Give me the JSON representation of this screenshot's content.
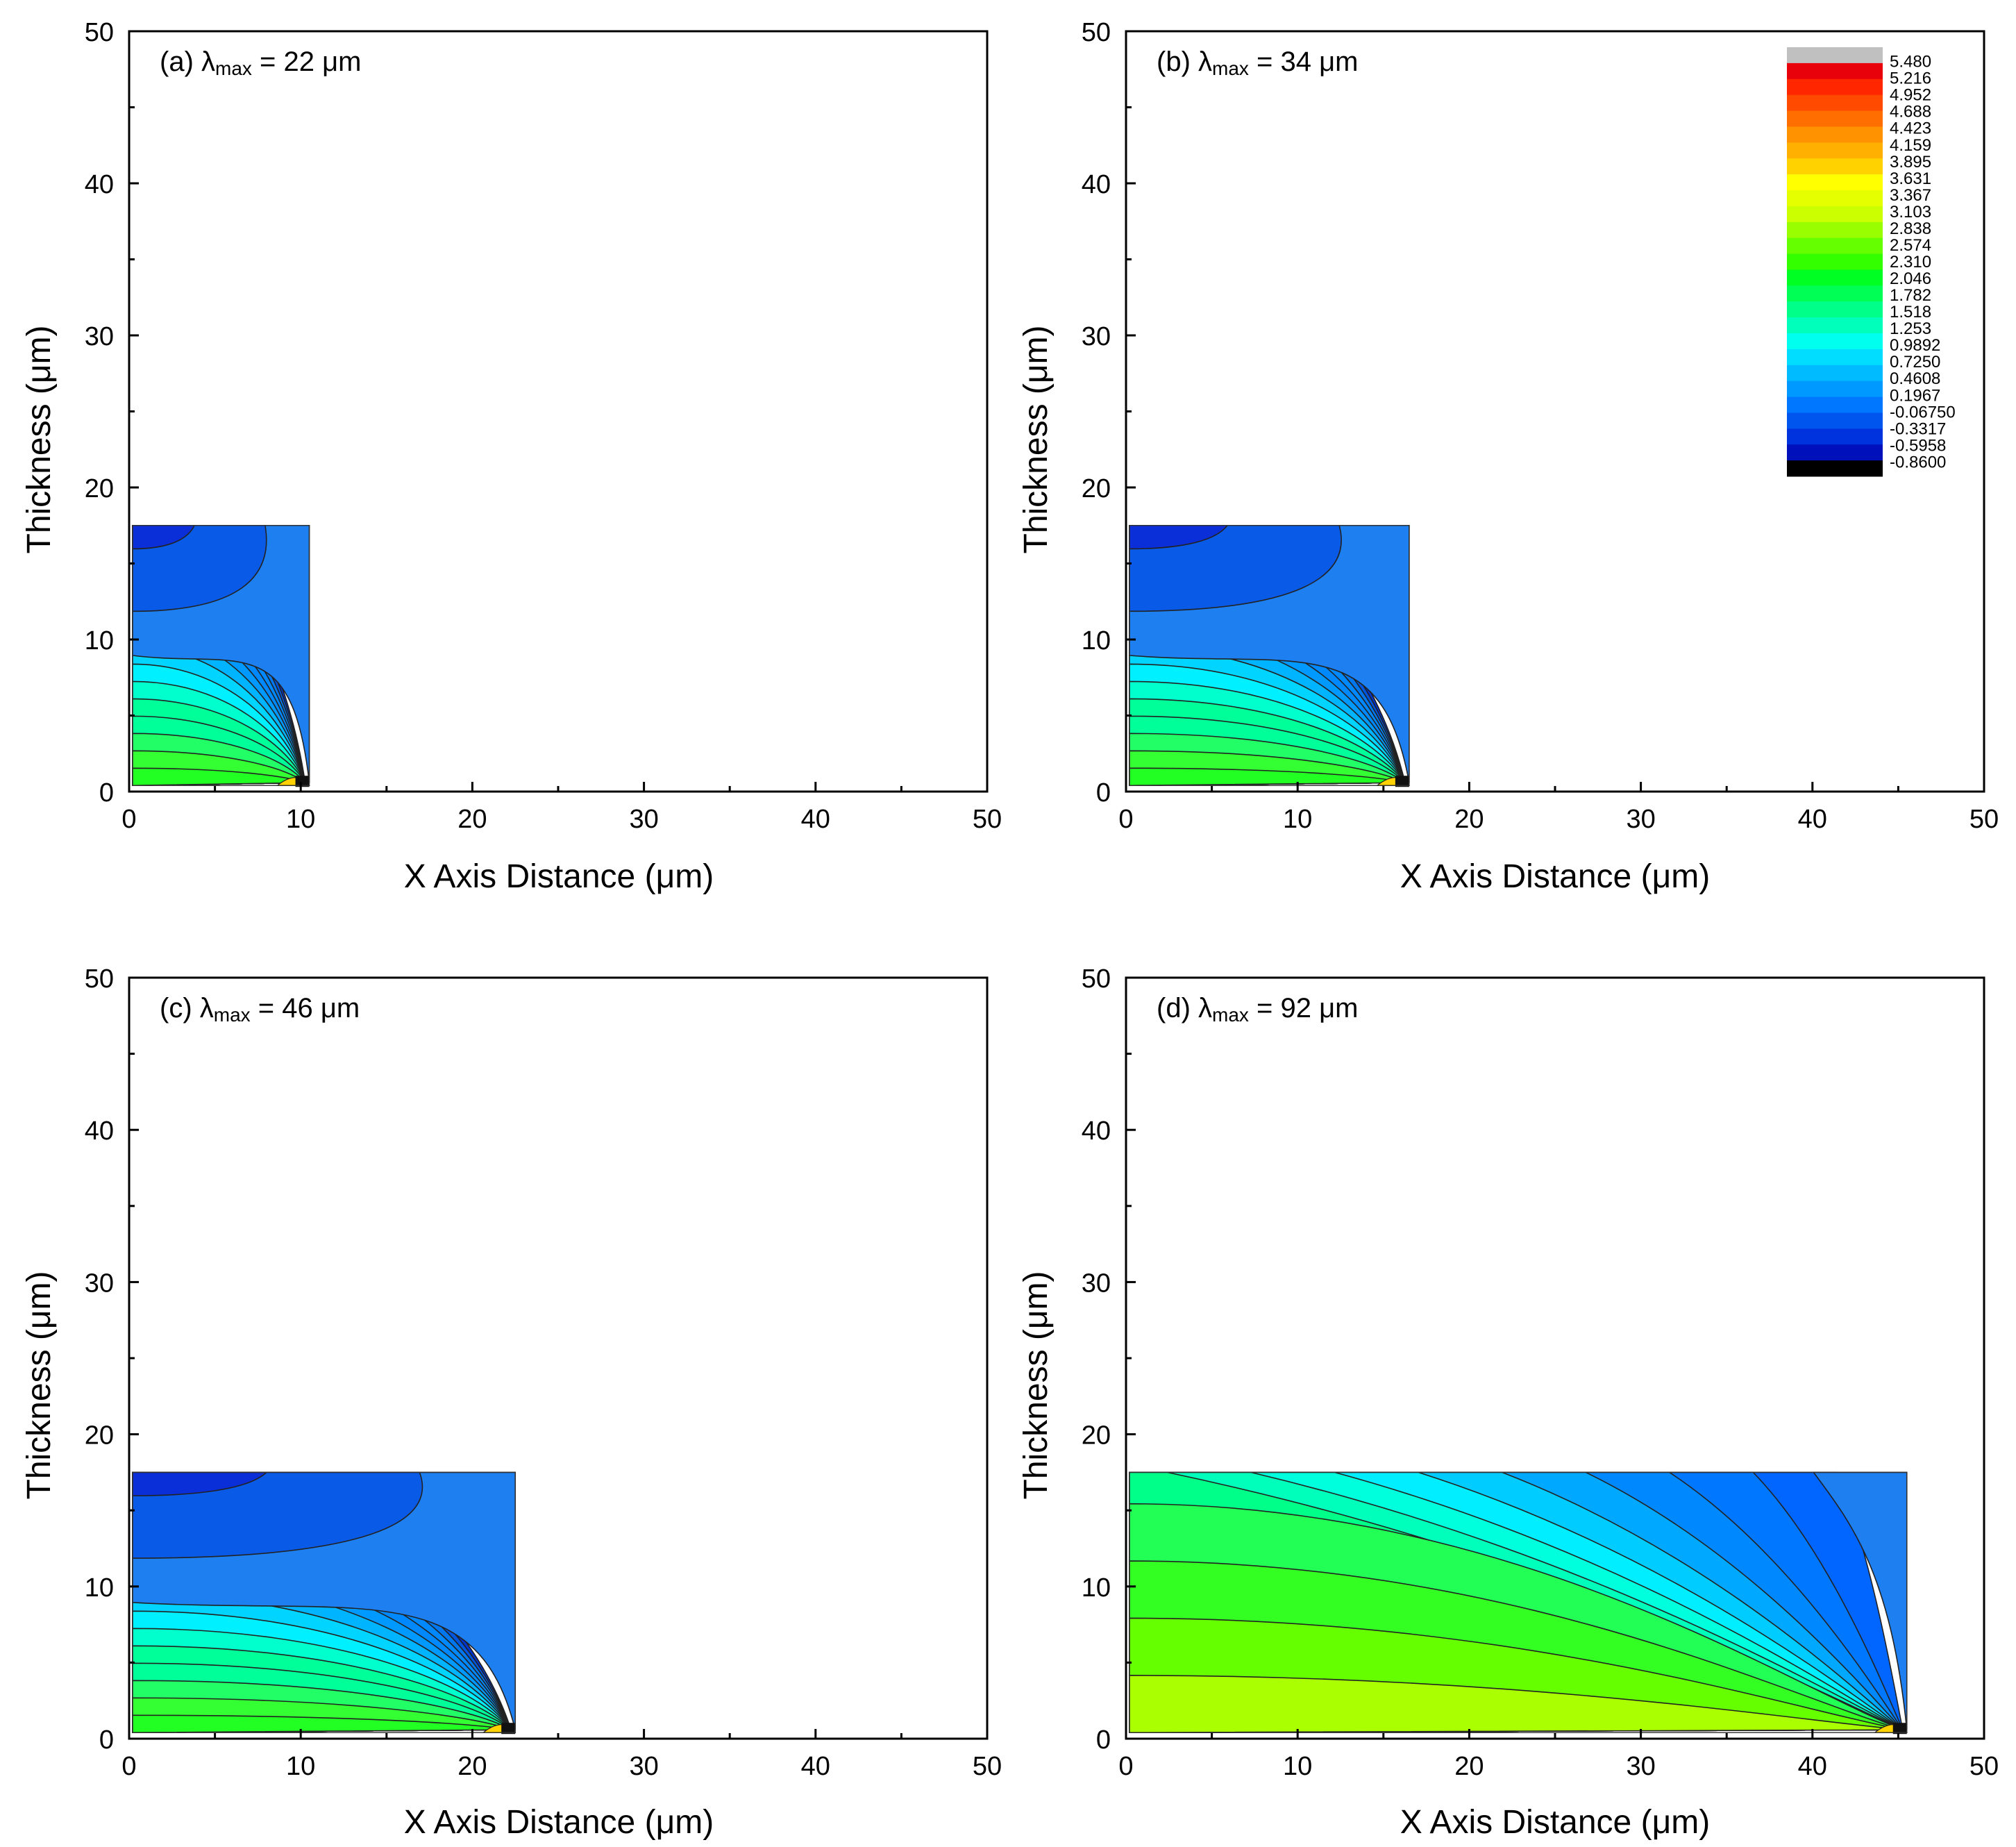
{
  "chart_data": [
    {
      "type": "heatmap",
      "panel": "a",
      "title_prefix": "(a) λ",
      "title_sub": "max",
      "title_suffix": " = 22 μm",
      "xlabel": "X Axis Distance (μm)",
      "ylabel": "Thickness (μm)",
      "xlim": [
        0,
        50
      ],
      "ylim": [
        0,
        50
      ],
      "xticks": [
        "0",
        "10",
        "20",
        "30",
        "40",
        "50"
      ],
      "yticks": [
        "0",
        "10",
        "20",
        "30",
        "40",
        "50"
      ],
      "domain_width": 10.5,
      "domain_height": 17.5,
      "vertical_ratio": 0.62,
      "layers": 15
    },
    {
      "type": "heatmap",
      "panel": "b",
      "title_prefix": "(b) λ",
      "title_sub": "max",
      "title_suffix": " = 34 μm",
      "xlabel": "X Axis Distance (μm)",
      "ylabel": "Thickness (μm)",
      "xlim": [
        0,
        50
      ],
      "ylim": [
        0,
        50
      ],
      "xticks": [
        "0",
        "10",
        "20",
        "30",
        "40",
        "50"
      ],
      "yticks": [
        "0",
        "10",
        "20",
        "30",
        "40",
        "50"
      ],
      "domain_width": 16.5,
      "domain_height": 17.5,
      "vertical_ratio": 0.7,
      "layers": 15
    },
    {
      "type": "heatmap",
      "panel": "c",
      "title_prefix": "(c) λ",
      "title_sub": "max",
      "title_suffix": " = 46 μm",
      "xlabel": "X Axis Distance (μm)",
      "ylabel": "Thickness (μm)",
      "xlim": [
        0,
        50
      ],
      "ylim": [
        0,
        50
      ],
      "xticks": [
        "0",
        "10",
        "20",
        "30",
        "40",
        "50"
      ],
      "yticks": [
        "0",
        "10",
        "20",
        "30",
        "40",
        "50"
      ],
      "domain_width": 22.5,
      "domain_height": 17.5,
      "vertical_ratio": 0.75,
      "layers": 15
    },
    {
      "type": "heatmap",
      "panel": "d",
      "title_prefix": "(d) λ",
      "title_sub": "max",
      "title_suffix": " = 92 μm",
      "xlabel": "X Axis Distance (μm)",
      "ylabel": "Thickness (μm)",
      "xlim": [
        0,
        50
      ],
      "ylim": [
        0,
        50
      ],
      "xticks": [
        "0",
        "10",
        "20",
        "30",
        "40",
        "50"
      ],
      "yticks": [
        "0",
        "10",
        "20",
        "30",
        "40",
        "50"
      ],
      "domain_width": 45.5,
      "domain_height": 17.5,
      "vertical_ratio": 0.15,
      "layers": 13
    }
  ],
  "colorbar": {
    "labels": [
      "5.480",
      "5.216",
      "4.952",
      "4.688",
      "4.423",
      "4.159",
      "3.895",
      "3.631",
      "3.367",
      "3.103",
      "2.838",
      "2.574",
      "2.310",
      "2.046",
      "1.782",
      "1.518",
      "1.253",
      "0.9892",
      "0.7250",
      "0.4608",
      "0.1967",
      "-0.06750",
      "-0.3317",
      "-0.5958",
      "-0.8600"
    ],
    "colors": [
      "#c0c0c0",
      "#e8000b",
      "#ff2600",
      "#ff4a00",
      "#ff6e00",
      "#ff9200",
      "#ffb000",
      "#ffd200",
      "#ffff00",
      "#e6ff00",
      "#ccff00",
      "#99ff00",
      "#66ff00",
      "#33ff00",
      "#00ff22",
      "#00ff55",
      "#00ff88",
      "#00ffbb",
      "#00ffee",
      "#00ddff",
      "#00bbff",
      "#0099ff",
      "#0077ff",
      "#0055ee",
      "#0033dd",
      "#0011bb",
      "#000000"
    ]
  }
}
